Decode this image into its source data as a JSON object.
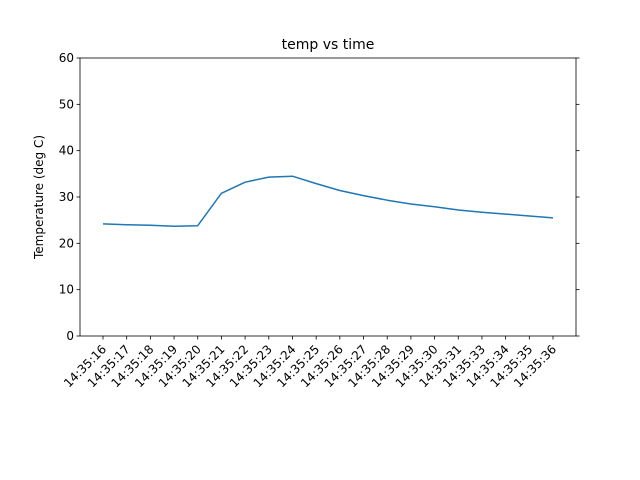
{
  "chart_data": {
    "type": "line",
    "title": "temp vs time",
    "xlabel": "",
    "ylabel": "Temperature (deg C)",
    "ylim": [
      0,
      60
    ],
    "yticks": [
      0,
      10,
      20,
      30,
      40,
      50,
      60
    ],
    "grid": false,
    "x": [
      "14:35:16",
      "14:35:17",
      "14:35:18",
      "14:35:19",
      "14:35:20",
      "14:35:21",
      "14:35:22",
      "14:35:23",
      "14:35:24",
      "14:35:25",
      "14:35:26",
      "14:35:27",
      "14:35:28",
      "14:35:29",
      "14:35:30",
      "14:35:31",
      "14:35:33",
      "14:35:34",
      "14:35:35",
      "14:35:36"
    ],
    "series": [
      {
        "color": "#1f77b4",
        "values": [
          24.2,
          24.0,
          23.9,
          23.7,
          23.8,
          30.8,
          33.2,
          34.3,
          34.5,
          32.9,
          31.4,
          30.3,
          29.3,
          28.5,
          27.9,
          27.2,
          26.7,
          26.3,
          25.9,
          25.5
        ]
      }
    ]
  }
}
